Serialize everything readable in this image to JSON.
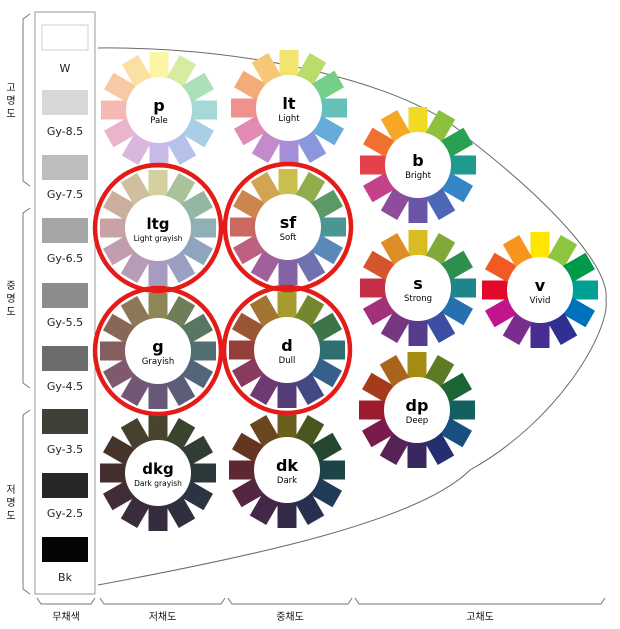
{
  "grayscale": [
    {
      "label": "W",
      "color": "#ffffff"
    },
    {
      "label": "Gy-8.5",
      "color": "#d7d7d7"
    },
    {
      "label": "Gy-7.5",
      "color": "#bdbdbd"
    },
    {
      "label": "Gy-6.5",
      "color": "#a5a5a5"
    },
    {
      "label": "Gy-5.5",
      "color": "#8c8c8c"
    },
    {
      "label": "Gy-4.5",
      "color": "#6c6c6c"
    },
    {
      "label": "Gy-3.5",
      "color": "#3f4139"
    },
    {
      "label": "Gy-2.5",
      "color": "#272727"
    },
    {
      "label": "Bk",
      "color": "#050505"
    }
  ],
  "left_brackets": [
    {
      "label": "고명도"
    },
    {
      "label": "중명도"
    },
    {
      "label": "저명도"
    }
  ],
  "bottom_brackets": [
    {
      "label": "무채색"
    },
    {
      "label": "저채도"
    },
    {
      "label": "중채도"
    },
    {
      "label": "고채도"
    }
  ],
  "wheels": [
    {
      "id": "p",
      "code": "p",
      "name": "Pale",
      "highlighted": false,
      "colors": [
        "#fbf5a4",
        "#d6eca0",
        "#ace0b8",
        "#a6d8d6",
        "#a9cee6",
        "#b7c2ea",
        "#c9b9e6",
        "#dab7dc",
        "#eab4cc",
        "#f4b9b2",
        "#f8c9a4",
        "#fae0a1"
      ]
    },
    {
      "id": "lt",
      "code": "lt",
      "name": "Light",
      "highlighted": false,
      "colors": [
        "#f1e46f",
        "#b9dc6a",
        "#76cf88",
        "#63c1ba",
        "#66acda",
        "#8b97dc",
        "#a58fdb",
        "#c48bcb",
        "#e18ab4",
        "#ef928e",
        "#f3ab78",
        "#f6c778"
      ]
    },
    {
      "id": "b",
      "code": "b",
      "name": "Bright",
      "highlighted": false,
      "colors": [
        "#f2d923",
        "#8dc03e",
        "#2aa053",
        "#1f9a8c",
        "#3385c6",
        "#4d67b7",
        "#6a55a6",
        "#8d4d9a",
        "#c3428a",
        "#e4414d",
        "#f0702f",
        "#f7a626"
      ]
    },
    {
      "id": "ltg",
      "code": "ltg",
      "name": "Light grayish",
      "highlighted": true,
      "colors": [
        "#d4cf9f",
        "#a9c29a",
        "#94b7a2",
        "#8fb0b4",
        "#8fa5bd",
        "#9ba0c2",
        "#a79cbf",
        "#b69cb6",
        "#c19eae",
        "#c7a4a3",
        "#ccae9d",
        "#d1be9f"
      ]
    },
    {
      "id": "sf",
      "code": "sf",
      "name": "Soft",
      "highlighted": true,
      "colors": [
        "#c9bf4e",
        "#90ad4c",
        "#5b9a66",
        "#4b9692",
        "#5a88b8",
        "#6f71b0",
        "#8464a4",
        "#a1609b",
        "#bd6183",
        "#c96a61",
        "#cc8551",
        "#d3a451"
      ]
    },
    {
      "id": "s",
      "code": "s",
      "name": "Strong",
      "highlighted": false,
      "colors": [
        "#d9bd20",
        "#83a83a",
        "#2e8f50",
        "#1e8688",
        "#286fb0",
        "#3b4ea1",
        "#553c8e",
        "#76377f",
        "#a3307a",
        "#c62f48",
        "#d5562b",
        "#dc8d26"
      ]
    },
    {
      "id": "v",
      "code": "v",
      "name": "Vivid",
      "highlighted": false,
      "colors": [
        "#ffe500",
        "#8cc63f",
        "#009a48",
        "#00a093",
        "#0072bc",
        "#2e3192",
        "#462d8f",
        "#7b2d8e",
        "#c1158c",
        "#e30a29",
        "#f15a22",
        "#f7941d"
      ]
    },
    {
      "id": "g",
      "code": "g",
      "name": "Grayish",
      "highlighted": true,
      "colors": [
        "#8d8758",
        "#6e7f57",
        "#5b7563",
        "#546f71",
        "#556579",
        "#5e5d79",
        "#675878",
        "#735876",
        "#7f5a6e",
        "#855e5e",
        "#896756",
        "#8c7757"
      ]
    },
    {
      "id": "d",
      "code": "d",
      "name": "Dull",
      "highlighted": true,
      "colors": [
        "#a69b2f",
        "#72872e",
        "#3d7549",
        "#2f6f70",
        "#355f8d",
        "#434a83",
        "#553d78",
        "#6f3a71",
        "#8a3a5e",
        "#953f3c",
        "#9a5532",
        "#a37532"
      ]
    },
    {
      "id": "dp",
      "code": "dp",
      "name": "Deep",
      "highlighted": false,
      "colors": [
        "#a48c13",
        "#5c7b24",
        "#1d6436",
        "#13605f",
        "#164f80",
        "#232f6f",
        "#3a2760",
        "#562356",
        "#7a1a4d",
        "#9b1b2f",
        "#a53b1a",
        "#a8641a"
      ]
    },
    {
      "id": "dkg",
      "code": "dkg",
      "name": "Dark grayish",
      "highlighted": false,
      "colors": [
        "#48452e",
        "#3a432e",
        "#2f3d34",
        "#2b393b",
        "#2b3440",
        "#302f40",
        "#352c3f",
        "#3b2c3c",
        "#412d37",
        "#442f2f",
        "#45342c",
        "#47402e"
      ]
    },
    {
      "id": "dk",
      "code": "dk",
      "name": "Dark",
      "highlighted": false,
      "colors": [
        "#6a601e",
        "#47571f",
        "#24482e",
        "#1d4446",
        "#1f3b57",
        "#28304f",
        "#342a4a",
        "#432848",
        "#552641",
        "#5e2830",
        "#643520",
        "#69481f"
      ]
    }
  ]
}
